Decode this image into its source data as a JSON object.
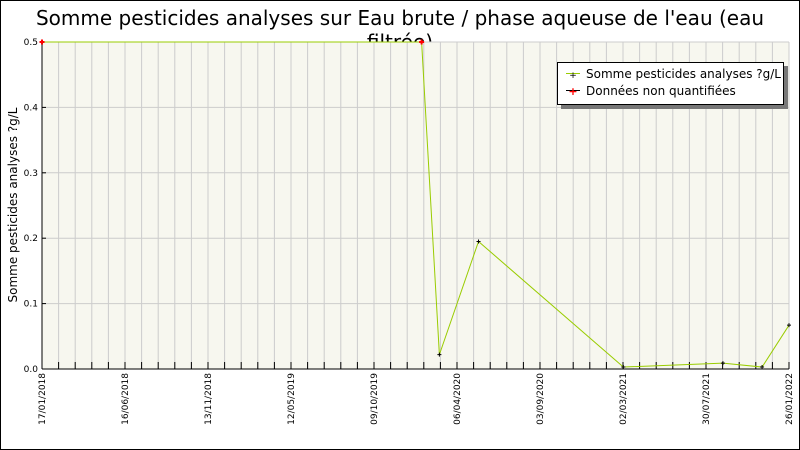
{
  "chart_data": {
    "type": "line",
    "title": "Somme pesticides analyses sur Eau brute / phase aqueuse de l'eau (eau filtrée)",
    "xlabel": "",
    "ylabel": "Somme pesticides analyses ?g/L",
    "xlim": [
      "2018-01-17",
      "2022-01-26"
    ],
    "ylim": [
      0,
      0.5
    ],
    "yticks": [
      "0.0",
      "0.1",
      "0.2",
      "0.3",
      "0.4",
      "0.5"
    ],
    "xticks": [
      "17/01/2018",
      "16/06/2018",
      "13/11/2018",
      "12/05/2019",
      "09/10/2019",
      "06/04/2020",
      "03/09/2020",
      "02/03/2021",
      "30/07/2021",
      "26/01/2022"
    ],
    "grid": true,
    "legend_position": "top-right",
    "series": [
      {
        "name": "Somme pesticides analyses ?g/L",
        "color": "#99cc00",
        "x": [
          "2018-01-17",
          "2020-02-03",
          "2020-03-09",
          "2020-05-25",
          "2021-03-06",
          "2021-09-18",
          "2021-12-04",
          "2022-01-26"
        ],
        "y": [
          0.5,
          0.5,
          0.022,
          0.195,
          0.003,
          0.009,
          0.003,
          0.067
        ]
      },
      {
        "name": "Données non quantifiées",
        "color": "#ff0000",
        "x": [
          "2018-01-17",
          "2020-02-03"
        ],
        "y": [
          0.5,
          0.5
        ]
      }
    ]
  }
}
